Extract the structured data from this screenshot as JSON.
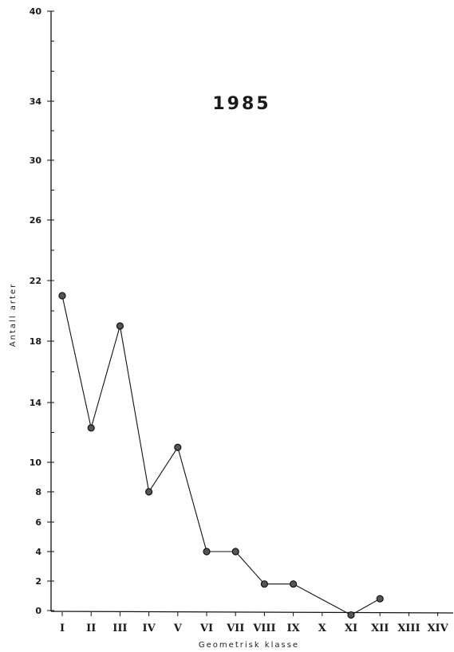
{
  "chart_data": {
    "type": "line",
    "title": "1985",
    "xlabel": "Geometrisk klasse",
    "ylabel": "Antall arter",
    "categories": [
      "I",
      "II",
      "III",
      "IV",
      "V",
      "VI",
      "VII",
      "VIII",
      "IX",
      "X",
      "XI",
      "XII",
      "XIII",
      "XIV"
    ],
    "y_tick_labels": [
      "0",
      "2",
      "4",
      "6",
      "8",
      "10",
      "14",
      "18",
      "22",
      "26",
      "30",
      "34",
      "40"
    ],
    "ylim": [
      0,
      40
    ],
    "grid": false,
    "series": [
      {
        "points": [
          {
            "x": "I",
            "y": 21
          },
          {
            "x": "II",
            "y": 12.3
          },
          {
            "x": "III",
            "y": 19
          },
          {
            "x": "IV",
            "y": 8
          },
          {
            "x": "V",
            "y": 11
          },
          {
            "x": "VI",
            "y": 4
          },
          {
            "x": "VII",
            "y": 4
          },
          {
            "x": "VIII",
            "y": 1.8
          },
          {
            "x": "IX",
            "y": 1.8
          },
          {
            "x": "XI",
            "y": -0.3
          },
          {
            "x": "XII",
            "y": 0.8
          }
        ]
      }
    ]
  },
  "colors": {
    "ink": "#111111",
    "marker_fill": "#555555",
    "background": "#ffffff"
  }
}
